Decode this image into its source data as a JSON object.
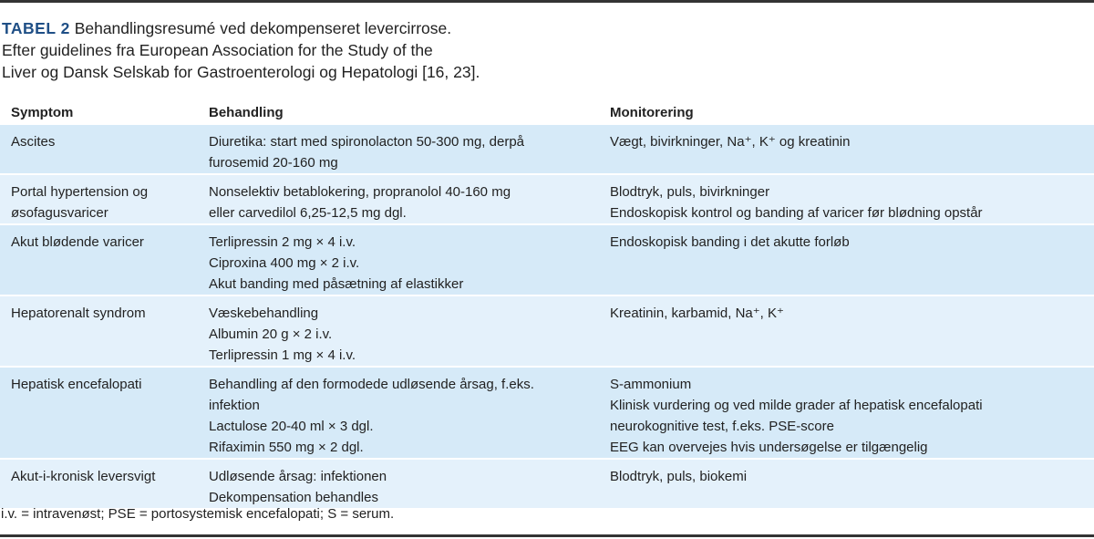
{
  "title": {
    "label": "TABEL 2",
    "line1": "Behandlingsresumé ved dekompenseret levercirrose.",
    "line2": "Efter guidelines fra European Association for the Study of the",
    "line3": "Liver og Dansk Selskab for Gastroenterologi og Hepatologi [16, 23]."
  },
  "colors": {
    "row_dark": "#d6eaf8",
    "row_light": "#e4f1fb",
    "title_label": "#1f4f86"
  },
  "table": {
    "headers": [
      "Symptom",
      "Behandling",
      "Monitorering"
    ],
    "rows": [
      {
        "symptom": [
          "Ascites"
        ],
        "behandling": [
          "Diuretika: start med spironolacton 50-300 mg, derpå",
          "furosemid 20-160 mg"
        ],
        "monitorering": [
          "Vægt, bivirkninger, Na⁺, K⁺ og kreatinin"
        ]
      },
      {
        "symptom": [
          "Portal hypertension og",
          "øsofagusvaricer"
        ],
        "behandling": [
          "Nonselektiv betablokering, propranolol 40-160 mg",
          "eller carvedilol 6,25-12,5 mg dgl."
        ],
        "monitorering": [
          "Blodtryk, puls, bivirkninger",
          "Endoskopisk kontrol og banding af varicer før blødning opstår"
        ]
      },
      {
        "symptom": [
          "Akut blødende varicer"
        ],
        "behandling": [
          "Terlipressin 2 mg × 4 i.v.",
          "Ciproxina 400 mg × 2 i.v.",
          "Akut banding med påsætning af elastikker"
        ],
        "monitorering": [
          "Endoskopisk banding i det akutte forløb"
        ]
      },
      {
        "symptom": [
          "Hepatorenalt syndrom"
        ],
        "behandling": [
          "Væskebehandling",
          "Albumin 20 g × 2 i.v.",
          "Terlipressin 1 mg × 4 i.v."
        ],
        "monitorering": [
          "Kreatinin, karbamid, Na⁺, K⁺"
        ]
      },
      {
        "symptom": [
          "Hepatisk encefalopati"
        ],
        "behandling": [
          "Behandling af den formodede udløsende årsag, f.eks.",
          "infektion",
          "Lactulose 20-40 ml × 3 dgl.",
          "Rifaximin 550 mg × 2 dgl."
        ],
        "monitorering": [
          "S-ammonium",
          "Klinisk vurdering og ved milde grader af hepatisk encefalopati",
          "neurokognitive test, f.eks. PSE-score",
          "EEG kan overvejes hvis undersøgelse er tilgængelig"
        ]
      },
      {
        "symptom": [
          "Akut-i-kronisk leversvigt"
        ],
        "behandling": [
          "Udløsende årsag: infektionen",
          "Dekompensation behandles"
        ],
        "monitorering": [
          "Blodtryk, puls, biokemi"
        ]
      }
    ]
  },
  "footnote": "i.v. = intravenøst; PSE = portosystemisk encefalopati; S = serum."
}
